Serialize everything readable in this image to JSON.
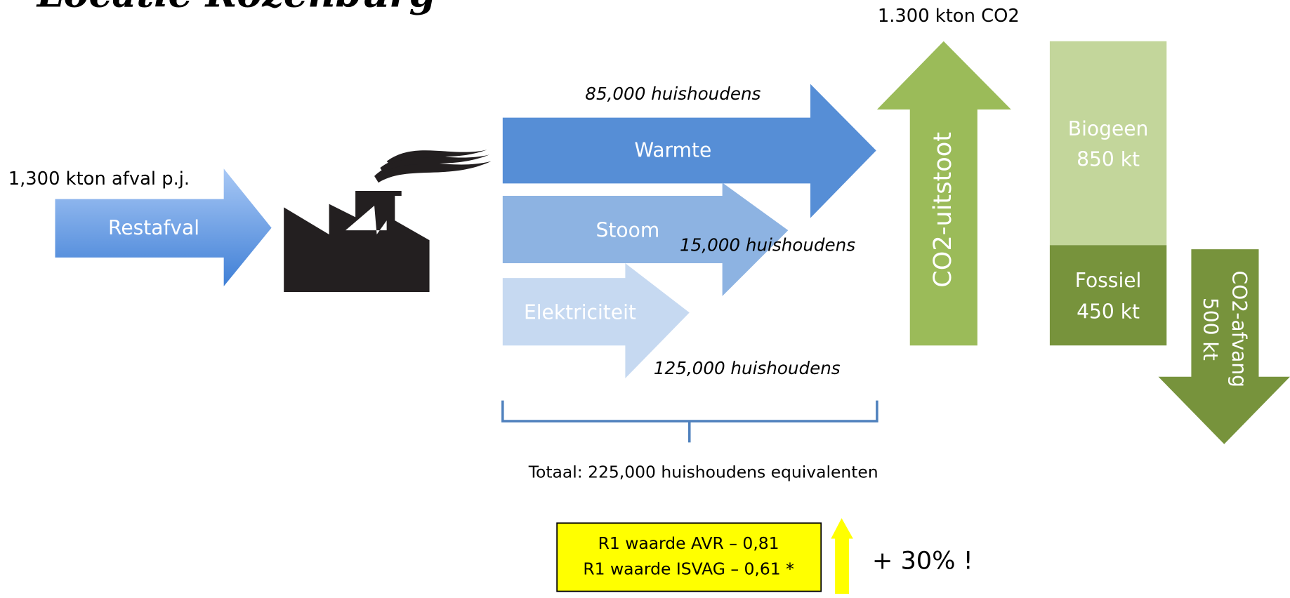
{
  "title": "Locatie Rozenburg",
  "input": {
    "amount": "1,300 kton afval p.j.",
    "label": "Restafval"
  },
  "outputs": [
    {
      "label": "Warmte",
      "households": "85,000 huishoudens"
    },
    {
      "label": "Stoom",
      "households": "15,000 huishoudens"
    },
    {
      "label": "Elektriciteit",
      "households": "125,000 huishoudens"
    }
  ],
  "total": "Totaal: 225,000 huishoudens equivalenten",
  "co2": {
    "amount": "1.300 kton CO2",
    "label": "CO2-uitstoot",
    "biogenic": {
      "label": "Biogeen",
      "value": "850 kt"
    },
    "fossil": {
      "label": "Fossiel",
      "value": "450 kt"
    },
    "capture": {
      "label": "CO2-afvang",
      "value": "500 kt"
    }
  },
  "r1": {
    "lines": [
      "R1 waarde AVR – 0,81",
      "R1 waarde ISVAG – 0,61 *"
    ],
    "gain": "+ 30% !"
  }
}
